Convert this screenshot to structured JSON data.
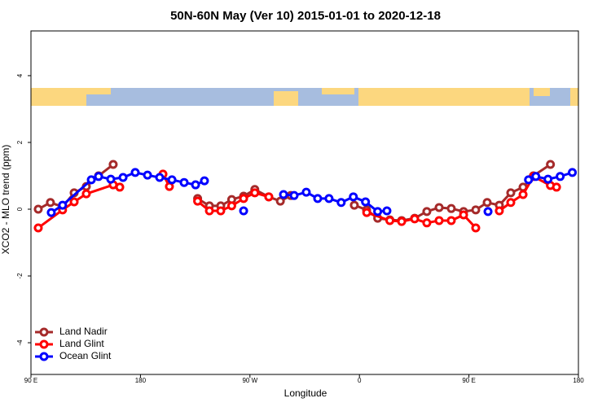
{
  "chart_data": {
    "type": "line",
    "title": "50N-60N May (Ver 10)   2015-01-01 to 2020-12-18",
    "x_label": "Longitude",
    "y_label": "XCO2 - MLO trend (ppm)",
    "xlim": [
      90,
      540
    ],
    "ylim": [
      -4.95,
      5.34
    ],
    "xticks": [
      {
        "value": 90,
        "label": "90 E"
      },
      180,
      {
        "value": 270,
        "label": "90 W"
      },
      {
        "value": 360,
        "label": "0"
      },
      {
        "value": 450,
        "label": "90 E"
      },
      {
        "value": 540,
        "label": "180"
      }
    ],
    "yticks": [
      -4,
      -2,
      0,
      2,
      4
    ],
    "legend": "bottom-left",
    "series": [
      {
        "name": "Land Nadir",
        "color": "#a52a2a",
        "x": [
          96,
          106,
          116,
          125.5,
          135.5,
          145.6,
          157.6,
          null,
          227,
          236.7,
          246,
          255,
          264.8,
          274,
          285.5,
          295,
          303.6,
          null,
          355.8,
          365.9,
          375,
          385,
          394.7,
          405.4,
          415.4,
          425.5,
          435.5,
          445.6,
          455.6,
          465,
          475,
          484.4,
          494.5,
          503,
          517
        ],
        "values": [
          0,
          0.2,
          0.07,
          0.49,
          0.68,
          1.0,
          1.34,
          null,
          0.32,
          0.1,
          0.1,
          0.29,
          0.39,
          0.59,
          0.37,
          0.24,
          0.41,
          null,
          0.12,
          -0.02,
          -0.27,
          -0.32,
          -0.34,
          -0.27,
          -0.07,
          0.05,
          0.02,
          -0.07,
          -0.02,
          0.2,
          0.12,
          0.49,
          0.66,
          1.0,
          1.34
        ]
      },
      {
        "name": "Land Glint",
        "color": "#ff0000",
        "x": [
          96,
          116,
          125.5,
          135.5,
          157.6,
          163,
          null,
          198.5,
          203.8,
          null,
          227,
          236.7,
          246,
          255,
          264.8,
          274,
          285.5,
          null,
          366,
          385,
          394.7,
          405.4,
          415.4,
          425.5,
          435.5,
          445.6,
          455.6,
          null,
          475,
          484.4,
          494.5,
          503,
          517,
          522
        ],
        "values": [
          -0.56,
          -0.02,
          0.22,
          0.46,
          0.73,
          0.66,
          null,
          1.05,
          0.68,
          null,
          0.24,
          -0.05,
          -0.05,
          0.1,
          0.32,
          0.49,
          0.37,
          null,
          -0.1,
          -0.34,
          -0.37,
          -0.29,
          -0.41,
          -0.34,
          -0.34,
          -0.17,
          -0.56,
          null,
          -0.05,
          0.2,
          0.44,
          0.98,
          0.71,
          0.66
        ]
      },
      {
        "name": "Ocean Glint",
        "color": "#0000ff",
        "x": [
          106.7,
          116,
          139.6,
          145.6,
          155.6,
          165.7,
          175.7,
          185.8,
          195.8,
          205.9,
          215.9,
          225.3,
          232.6,
          null,
          264.8,
          null,
          297.6,
          306.3,
          316.3,
          325.7,
          335,
          345,
          355,
          365,
          375,
          382.6,
          null,
          465.7,
          null,
          499,
          505,
          515,
          525,
          535
        ],
        "values": [
          -0.1,
          0.12,
          0.88,
          0.98,
          0.9,
          0.95,
          1.1,
          1.02,
          0.95,
          0.88,
          0.8,
          0.73,
          0.85,
          null,
          -0.05,
          null,
          0.44,
          0.41,
          0.51,
          0.32,
          0.32,
          0.2,
          0.37,
          0.22,
          -0.07,
          -0.05,
          null,
          -0.07,
          null,
          0.88,
          0.98,
          0.9,
          0.98,
          1.1
        ]
      }
    ]
  }
}
